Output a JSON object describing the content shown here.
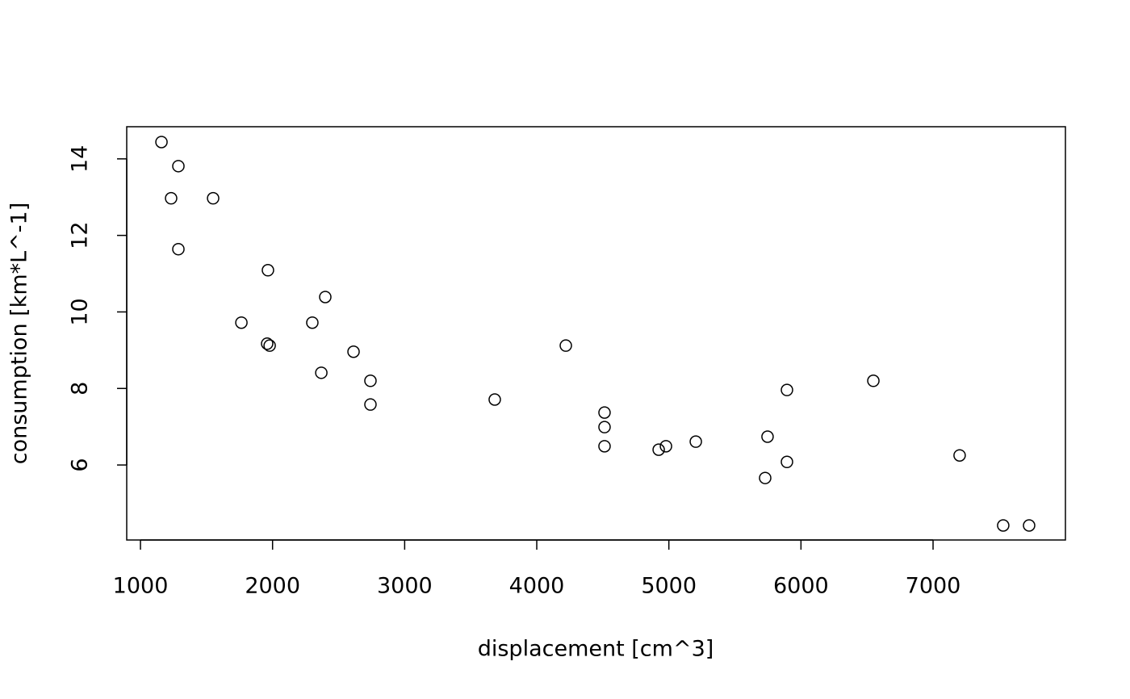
{
  "chart_data": {
    "type": "scatter",
    "x_label": "displacement [cm^3]",
    "y_label": "consumption [km*L^-1]",
    "x": [
      1159,
      1287,
      1232,
      1550,
      1287,
      1965,
      2399,
      1764,
      2301,
      1959,
      1978,
      2613,
      2369,
      2741,
      2741,
      3682,
      4220,
      4513,
      4513,
      4513,
      4923,
      4978,
      5204,
      5747,
      5894,
      5894,
      5729,
      6548,
      7201,
      7531,
      7727
    ],
    "values": [
      14.44,
      13.81,
      12.97,
      12.97,
      11.64,
      11.09,
      10.39,
      9.72,
      9.72,
      9.17,
      9.12,
      8.96,
      8.41,
      8.2,
      7.58,
      7.71,
      9.12,
      7.37,
      6.99,
      6.49,
      6.4,
      6.49,
      6.61,
      6.74,
      7.96,
      6.08,
      5.66,
      8.2,
      6.25,
      4.42,
      4.42
    ],
    "color": "#000000",
    "xlim": [
      896,
      8002
    ],
    "xticks": [
      1000,
      2000,
      3000,
      4000,
      5000,
      6000,
      7000
    ],
    "ylim": [
      4.04,
      14.84
    ],
    "yticks": [
      6,
      8,
      10,
      12,
      14
    ],
    "grid": false
  }
}
